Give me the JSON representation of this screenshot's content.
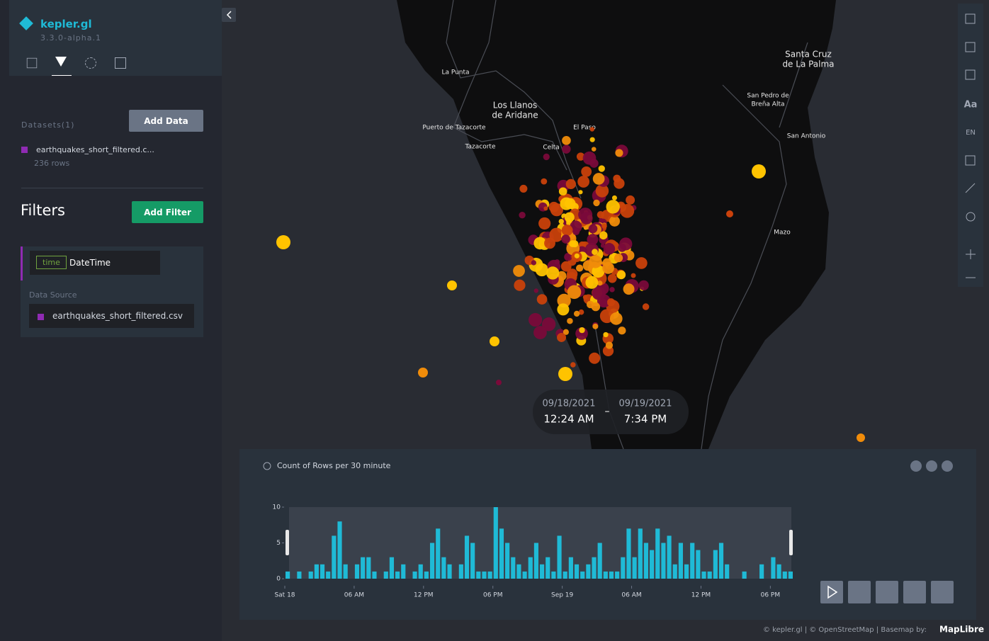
{
  "header": {
    "logo": "kepler.gl",
    "version": "3.3.0-alpha.1"
  },
  "datasets": {
    "label": "Datasets(1)",
    "add_button": "Add Data",
    "items": [
      {
        "name": "earthquakes_short_filtered.c...",
        "rows": "236 rows"
      }
    ]
  },
  "filters": {
    "title": "Filters",
    "add_button": "Add Filter",
    "items": [
      {
        "type_tag": "time",
        "field": "DateTime",
        "source_label": "Data Source",
        "source": "earthquakes_short_filtered.csv"
      }
    ]
  },
  "map": {
    "labels": [
      "La Punta",
      "Los Llanos",
      "de Aridane",
      "Puerto de Tazacorte",
      "Tazacorte",
      "El Paso",
      "Celta",
      "Santa Cruz",
      "de La Palma",
      "San Pedro de",
      "Breña Alta",
      "San Antonio",
      "Mazo"
    ]
  },
  "toolbar": {
    "text_buttons": [
      "Aa",
      "EN"
    ]
  },
  "time_range": {
    "start_date": "09/18/2021",
    "start_time": "12:24 AM",
    "separator": "–",
    "end_date": "09/19/2021",
    "end_time": "7:34 PM"
  },
  "histogram": {
    "type": "bar",
    "title": "Count of Rows per 30 minute",
    "color": "#1fbad6",
    "bins": [
      0,
      0.5,
      1,
      1.5,
      2,
      2.5,
      3,
      3.5,
      4,
      4.5,
      5,
      5.5,
      6,
      6.5,
      7,
      7.5,
      8,
      8.5,
      9,
      9.5,
      10,
      10.5,
      11,
      11.5,
      12,
      12.5,
      13,
      13.5,
      14,
      14.5,
      15,
      15.5,
      16,
      16.5,
      17,
      17.5,
      18,
      18.5,
      19,
      19.5,
      20,
      20.5,
      21,
      21.5,
      22,
      22.5,
      23,
      23.5,
      24,
      24.5,
      25,
      25.5,
      26,
      26.5,
      27,
      27.5,
      28,
      28.5,
      29,
      29.5,
      30,
      30.5,
      31,
      31.5,
      32,
      32.5,
      33,
      33.5,
      34,
      34.5,
      35,
      35.5,
      36,
      36.5,
      37,
      37.5,
      38,
      38.5,
      39,
      39.5,
      40,
      40.5,
      41,
      41.5,
      42,
      42.5,
      43,
      43.5,
      44
    ],
    "values": [
      1,
      0,
      1,
      0,
      1,
      2,
      2,
      1,
      6,
      8,
      2,
      0,
      2,
      3,
      3,
      1,
      0,
      1,
      3,
      1,
      2,
      0,
      1,
      2,
      1,
      5,
      7,
      3,
      2,
      0,
      2,
      6,
      5,
      1,
      1,
      1,
      10,
      7,
      5,
      3,
      2,
      1,
      3,
      5,
      2,
      3,
      1,
      6,
      1,
      3,
      2,
      1,
      2,
      3,
      5,
      1,
      1,
      1,
      3,
      7,
      3,
      7,
      5,
      4,
      7,
      5,
      6,
      2,
      5,
      2,
      5,
      4,
      1,
      1,
      4,
      5,
      2,
      0,
      0,
      1,
      0,
      0,
      2,
      0,
      3,
      2,
      1,
      1
    ],
    "xlim": [
      0,
      44
    ],
    "xticks": [
      {
        "value": 0,
        "label": "Sat 18"
      },
      {
        "value": 6,
        "label": "06 AM"
      },
      {
        "value": 12,
        "label": "12 PM"
      },
      {
        "value": 18,
        "label": "06 PM"
      },
      {
        "value": 24,
        "label": "Sep 19"
      },
      {
        "value": 30,
        "label": "06 AM"
      },
      {
        "value": 36,
        "label": "12 PM"
      },
      {
        "value": 42,
        "label": "06 PM"
      }
    ],
    "ylim": [
      0,
      10
    ],
    "yticks": [
      0,
      5,
      10
    ]
  },
  "attribution": {
    "text": "© kepler.gl | © OpenStreetMap | Basemap by:",
    "brand": "MapLibre"
  }
}
